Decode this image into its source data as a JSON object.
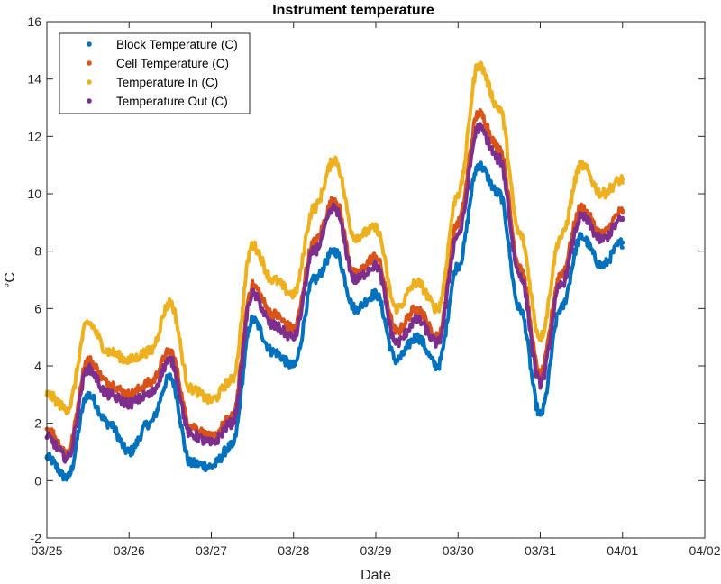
{
  "chart_data": {
    "type": "line",
    "title": "Instrument temperature",
    "xlabel": "Date",
    "ylabel": "°C",
    "xlim": [
      "03/25",
      "04/02"
    ],
    "ylim": [
      -2,
      16
    ],
    "x_ticks": [
      "03/25",
      "03/26",
      "03/27",
      "03/28",
      "03/29",
      "03/30",
      "03/31",
      "04/01",
      "04/02"
    ],
    "y_ticks": [
      -2,
      0,
      2,
      4,
      6,
      8,
      10,
      12,
      14,
      16
    ],
    "grid": false,
    "legend_position": "top-left",
    "marker": "dot",
    "x": [
      0.0,
      0.25,
      0.5,
      0.75,
      1.0,
      1.25,
      1.5,
      1.75,
      2.0,
      2.25,
      2.5,
      2.75,
      3.0,
      3.25,
      3.5,
      3.75,
      4.0,
      4.25,
      4.5,
      4.75,
      5.0,
      5.25,
      5.5,
      5.75,
      6.0,
      6.25,
      6.5,
      6.75,
      7.0
    ],
    "x_unit": "days since 03/25",
    "series": [
      {
        "name": "Block Temperature (C)",
        "color": "#0072BD",
        "values": [
          0.8,
          0.1,
          3.0,
          2.0,
          1.0,
          2.0,
          3.6,
          0.6,
          0.5,
          1.2,
          5.6,
          4.5,
          4.0,
          7.0,
          8.0,
          6.0,
          6.5,
          4.2,
          5.0,
          4.0,
          7.5,
          11.0,
          10.0,
          6.0,
          2.3,
          6.0,
          8.5,
          7.5,
          8.3
        ]
      },
      {
        "name": "Cell Temperature (C)",
        "color": "#D95319",
        "values": [
          1.8,
          1.0,
          4.2,
          3.4,
          3.0,
          3.4,
          4.5,
          1.9,
          1.5,
          2.2,
          6.8,
          5.8,
          5.3,
          8.3,
          9.8,
          7.2,
          7.8,
          5.2,
          6.0,
          5.0,
          9.0,
          12.8,
          11.6,
          7.5,
          3.7,
          7.2,
          9.5,
          8.6,
          9.4
        ]
      },
      {
        "name": "Temperature In (C)",
        "color": "#EDB120",
        "values": [
          3.0,
          2.5,
          5.5,
          4.5,
          4.2,
          4.5,
          6.2,
          3.2,
          2.8,
          3.5,
          8.2,
          7.0,
          6.5,
          9.5,
          11.2,
          8.5,
          8.8,
          6.0,
          6.9,
          6.0,
          10.0,
          14.5,
          13.0,
          8.6,
          5.0,
          8.5,
          11.0,
          10.0,
          10.5
        ]
      },
      {
        "name": "Temperature Out (C)",
        "color": "#7E2F8E",
        "values": [
          1.5,
          0.8,
          3.9,
          3.0,
          2.7,
          3.0,
          4.2,
          1.6,
          1.3,
          2.0,
          6.5,
          5.4,
          5.0,
          8.0,
          9.5,
          7.0,
          7.5,
          4.8,
          5.6,
          4.8,
          8.6,
          12.3,
          11.2,
          7.2,
          3.4,
          6.8,
          9.2,
          8.4,
          9.1
        ]
      }
    ]
  }
}
